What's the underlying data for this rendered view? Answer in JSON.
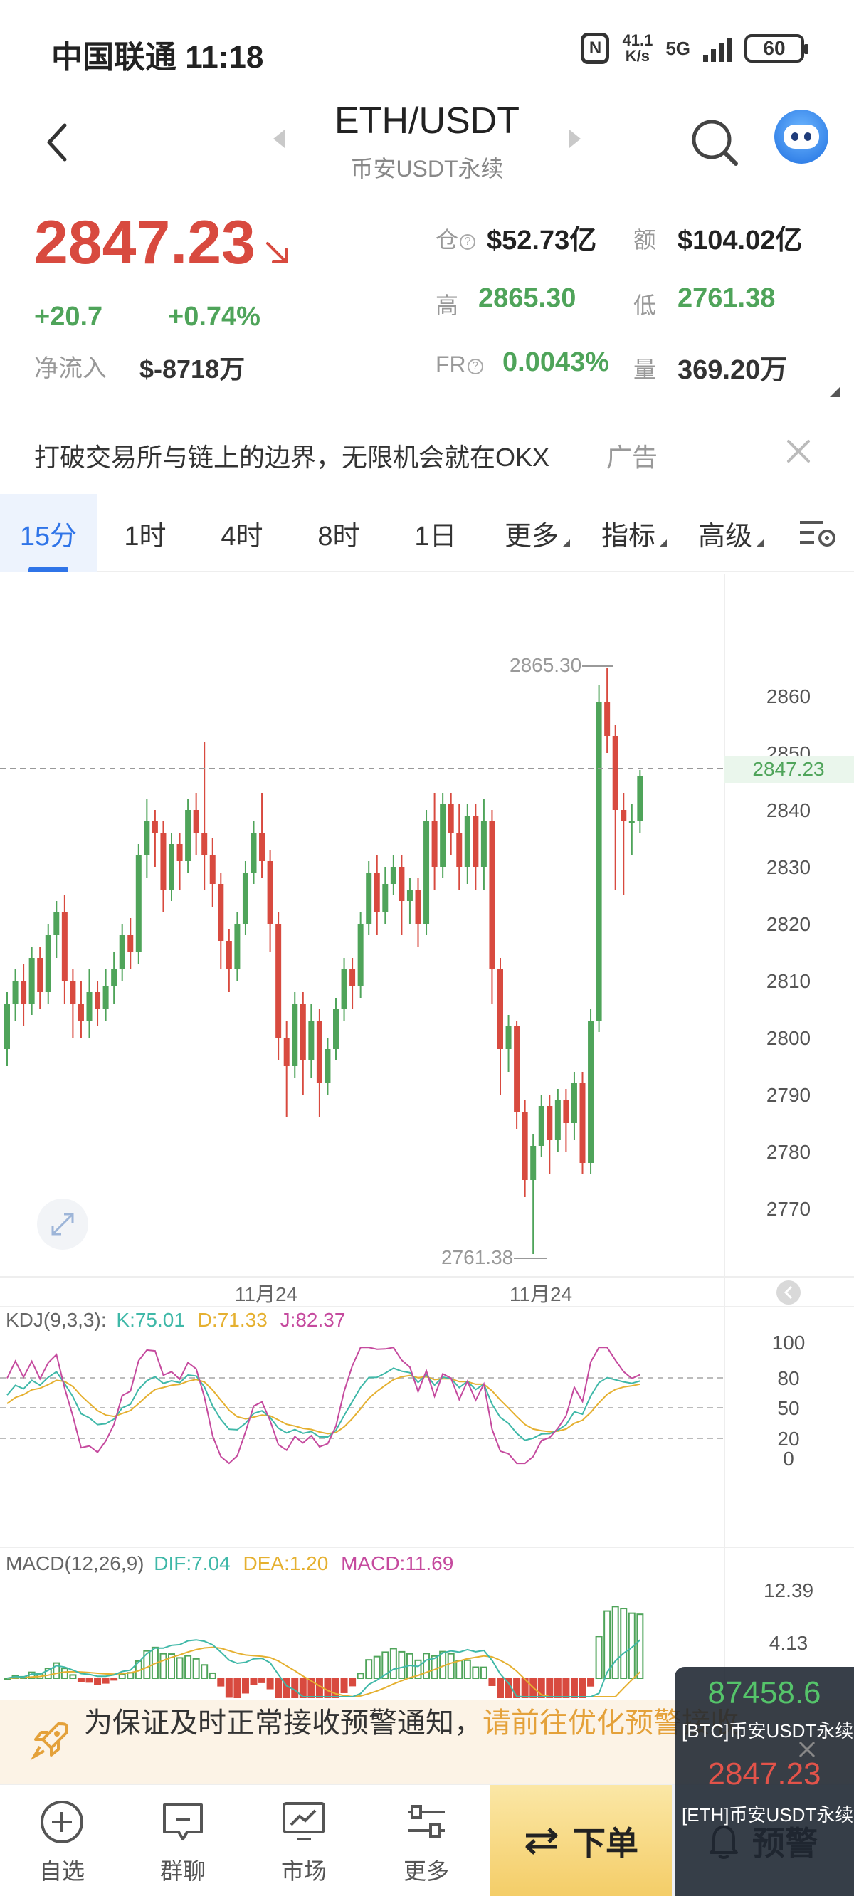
{
  "status_bar": {
    "carrier_time": "中国联通 11:18",
    "net_speed_value": "41.1",
    "net_speed_unit": "K/s",
    "network": "5G",
    "battery": "60"
  },
  "header": {
    "title": "ETH/USDT",
    "subtitle": "币安USDT永续"
  },
  "price": {
    "last": "2847.23",
    "change_abs": "+20.7",
    "change_pct": "+0.74%",
    "netflow_label": "净流入",
    "netflow_value": "$-8718万"
  },
  "stats": {
    "oi_label": "仓",
    "oi_value": "$52.73亿",
    "turnover_label": "额",
    "turnover_value": "$104.02亿",
    "high_label": "高",
    "high_value": "2865.30",
    "low_label": "低",
    "low_value": "2761.38",
    "fr_label": "FR",
    "fr_value": "0.0043%",
    "volume_label": "量",
    "volume_value": "369.20万"
  },
  "ad": {
    "text": "打破交易所与链上的边界，无限机会就在OKX",
    "tag": "广告"
  },
  "tabs": [
    {
      "label": "15分"
    },
    {
      "label": "1时"
    },
    {
      "label": "4时"
    },
    {
      "label": "8时"
    },
    {
      "label": "1日"
    },
    {
      "label": "更多"
    },
    {
      "label": "指标"
    },
    {
      "label": "高级"
    }
  ],
  "chart_data": {
    "type": "candlestick",
    "y_ticks": [
      "2860",
      "2850",
      "2840",
      "2830",
      "2820",
      "2810",
      "2800",
      "2790",
      "2780",
      "2770"
    ],
    "y_range": [
      2760,
      2870
    ],
    "x_labels": [
      "11月24",
      "11月24"
    ],
    "high_label": "2865.30",
    "low_label": "2761.38",
    "current_price_label": "2847.23",
    "candles": [
      [
        2798,
        2806,
        2795,
        2808
      ],
      [
        2806,
        2810,
        2803,
        2812
      ],
      [
        2810,
        2806,
        2802,
        2813
      ],
      [
        2806,
        2814,
        2804,
        2816
      ],
      [
        2814,
        2808,
        2805,
        2816
      ],
      [
        2808,
        2818,
        2806,
        2820
      ],
      [
        2818,
        2822,
        2814,
        2824
      ],
      [
        2822,
        2810,
        2806,
        2825
      ],
      [
        2810,
        2806,
        2800,
        2812
      ],
      [
        2806,
        2803,
        2800,
        2810
      ],
      [
        2803,
        2808,
        2800,
        2812
      ],
      [
        2808,
        2805,
        2802,
        2810
      ],
      [
        2805,
        2809,
        2803,
        2812
      ],
      [
        2809,
        2812,
        2806,
        2815
      ],
      [
        2812,
        2818,
        2810,
        2820
      ],
      [
        2818,
        2815,
        2812,
        2821
      ],
      [
        2815,
        2832,
        2813,
        2834
      ],
      [
        2832,
        2838,
        2828,
        2842
      ],
      [
        2838,
        2836,
        2830,
        2840
      ],
      [
        2836,
        2826,
        2822,
        2838
      ],
      [
        2826,
        2834,
        2824,
        2836
      ],
      [
        2834,
        2831,
        2826,
        2836
      ],
      [
        2831,
        2840,
        2829,
        2842
      ],
      [
        2840,
        2836,
        2832,
        2843
      ],
      [
        2836,
        2832,
        2826,
        2852
      ],
      [
        2832,
        2827,
        2823,
        2835
      ],
      [
        2827,
        2817,
        2812,
        2829
      ],
      [
        2817,
        2812,
        2808,
        2819
      ],
      [
        2812,
        2820,
        2810,
        2822
      ],
      [
        2820,
        2829,
        2818,
        2831
      ],
      [
        2829,
        2836,
        2827,
        2838
      ],
      [
        2836,
        2831,
        2828,
        2843
      ],
      [
        2831,
        2820,
        2815,
        2833
      ],
      [
        2820,
        2800,
        2796,
        2822
      ],
      [
        2800,
        2795,
        2786,
        2803
      ],
      [
        2795,
        2806,
        2793,
        2808
      ],
      [
        2806,
        2796,
        2790,
        2808
      ],
      [
        2796,
        2803,
        2793,
        2806
      ],
      [
        2803,
        2792,
        2786,
        2805
      ],
      [
        2792,
        2798,
        2790,
        2800
      ],
      [
        2798,
        2805,
        2796,
        2807
      ],
      [
        2805,
        2812,
        2803,
        2814
      ],
      [
        2812,
        2809,
        2805,
        2814
      ],
      [
        2809,
        2820,
        2807,
        2822
      ],
      [
        2820,
        2829,
        2818,
        2831
      ],
      [
        2829,
        2822,
        2818,
        2832
      ],
      [
        2822,
        2827,
        2820,
        2830
      ],
      [
        2827,
        2830,
        2825,
        2832
      ],
      [
        2830,
        2824,
        2818,
        2832
      ],
      [
        2824,
        2826,
        2820,
        2828
      ],
      [
        2826,
        2820,
        2816,
        2828
      ],
      [
        2820,
        2838,
        2818,
        2840
      ],
      [
        2838,
        2830,
        2826,
        2843
      ],
      [
        2830,
        2841,
        2828,
        2843
      ],
      [
        2841,
        2836,
        2832,
        2843
      ],
      [
        2836,
        2830,
        2826,
        2841
      ],
      [
        2830,
        2839,
        2827,
        2841
      ],
      [
        2839,
        2830,
        2826,
        2841
      ],
      [
        2830,
        2838,
        2826,
        2842
      ],
      [
        2838,
        2812,
        2806,
        2840
      ],
      [
        2812,
        2798,
        2790,
        2814
      ],
      [
        2798,
        2802,
        2794,
        2804
      ],
      [
        2802,
        2787,
        2784,
        2803
      ],
      [
        2787,
        2775,
        2772,
        2789
      ],
      [
        2775,
        2781,
        2762,
        2783
      ],
      [
        2781,
        2788,
        2779,
        2790
      ],
      [
        2788,
        2782,
        2776,
        2790
      ],
      [
        2782,
        2789,
        2780,
        2791
      ],
      [
        2789,
        2785,
        2780,
        2791
      ],
      [
        2785,
        2792,
        2782,
        2794
      ],
      [
        2792,
        2778,
        2776,
        2794
      ],
      [
        2778,
        2803,
        2776,
        2805
      ],
      [
        2803,
        2859,
        2801,
        2862
      ],
      [
        2859,
        2853,
        2850,
        2865
      ],
      [
        2853,
        2840,
        2826,
        2855
      ],
      [
        2840,
        2838,
        2825,
        2843
      ],
      [
        2838,
        2838,
        2832,
        2841
      ],
      [
        2838,
        2846,
        2836,
        2847
      ]
    ],
    "kdj_label": "KDJ(9,3,3):",
    "kdj_k": "K:75.01",
    "kdj_d": "D:71.33",
    "kdj_j": "J:82.37",
    "kdj_ticks": [
      "100",
      "80",
      "50",
      "20",
      "0"
    ],
    "macd_label": "MACD(12,26,9)",
    "macd_dif": "DIF:7.04",
    "macd_dea": "DEA:1.20",
    "macd_val": "MACD:11.69",
    "macd_ticks": [
      "12.39",
      "4.13"
    ]
  },
  "alert_banner": {
    "text": "为保证及时正常接收预警通知，",
    "link": "请前往优化预警接收"
  },
  "bottom_nav": {
    "watchlist": "自选",
    "chat": "群聊",
    "market": "市场",
    "more": "更多",
    "order": "下单",
    "alert": "预警"
  },
  "float_ticker": {
    "btc_price": "87458.6",
    "btc_name": "[BTC]币安USDT永续",
    "eth_price": "2847.23",
    "eth_name": "[ETH]币安USDT永续"
  },
  "colors": {
    "up": "#4fa45a",
    "down": "#d84a3f",
    "accent": "#2f74e8",
    "kdj_k": "#3fb8a8",
    "kdj_d": "#e5b030",
    "kdj_j": "#c54a9e"
  }
}
